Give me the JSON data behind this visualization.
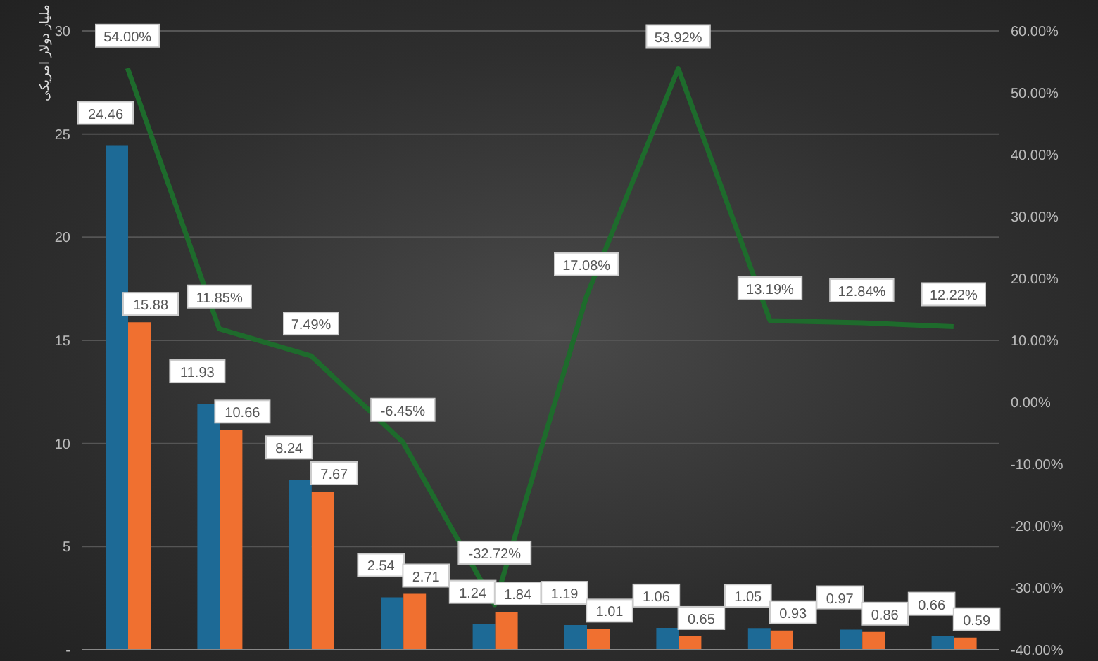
{
  "chart_data": {
    "type": "bar",
    "ylabel": "مليار دولار امريكي",
    "categories": [
      null,
      null,
      null,
      null,
      null,
      null,
      null,
      null,
      null,
      null
    ],
    "series": [
      {
        "color": "#1d6a96",
        "values": [
          24.46,
          11.93,
          8.24,
          2.54,
          1.24,
          1.19,
          1.06,
          1.05,
          0.97,
          0.66
        ],
        "value_labels": [
          "24.46",
          "11.93",
          "8.24",
          "2.54",
          "1.24",
          "1.19",
          "1.06",
          "1.05",
          "0.97",
          "0.66"
        ]
      },
      {
        "color": "#f07030",
        "values": [
          15.88,
          10.66,
          7.67,
          2.71,
          1.84,
          1.01,
          0.65,
          0.93,
          0.86,
          0.59
        ],
        "value_labels": [
          "15.88",
          "10.66",
          "7.67",
          "2.71",
          "1.84",
          "1.01",
          "0.65",
          "0.93",
          "0.86",
          "0.59"
        ]
      },
      {
        "type": "line",
        "axis": "y2",
        "color": "#1e6b2c",
        "values": [
          54.0,
          11.85,
          7.49,
          -6.45,
          -32.72,
          17.08,
          53.92,
          13.19,
          12.84,
          12.22
        ],
        "value_labels": [
          "54.00%",
          "11.85%",
          "7.49%",
          "-6.45%",
          "-32.72%",
          "17.08%",
          "53.92%",
          "13.19%",
          "12.84%",
          "12.22%"
        ]
      }
    ],
    "ylim": [
      0,
      30
    ],
    "yticks": [
      {
        "value": 0,
        "label": "-"
      },
      5,
      10,
      15,
      20,
      25,
      30
    ],
    "y2lim": [
      -40,
      60
    ],
    "y2ticks": [
      {
        "value": -40,
        "label": "-40.00%"
      },
      {
        "value": -30,
        "label": "-30.00%"
      },
      {
        "value": -20,
        "label": "-20.00%"
      },
      {
        "value": -10,
        "label": "-10.00%"
      },
      {
        "value": 0,
        "label": "0.00%"
      },
      {
        "value": 10,
        "label": "10.00%"
      },
      {
        "value": 20,
        "label": "20.00%"
      },
      {
        "value": 30,
        "label": "30.00%"
      },
      {
        "value": 40,
        "label": "40.00%"
      },
      {
        "value": 50,
        "label": "50.00%"
      },
      {
        "value": 60,
        "label": "60.00%"
      }
    ],
    "grid": "y",
    "legend": false
  }
}
